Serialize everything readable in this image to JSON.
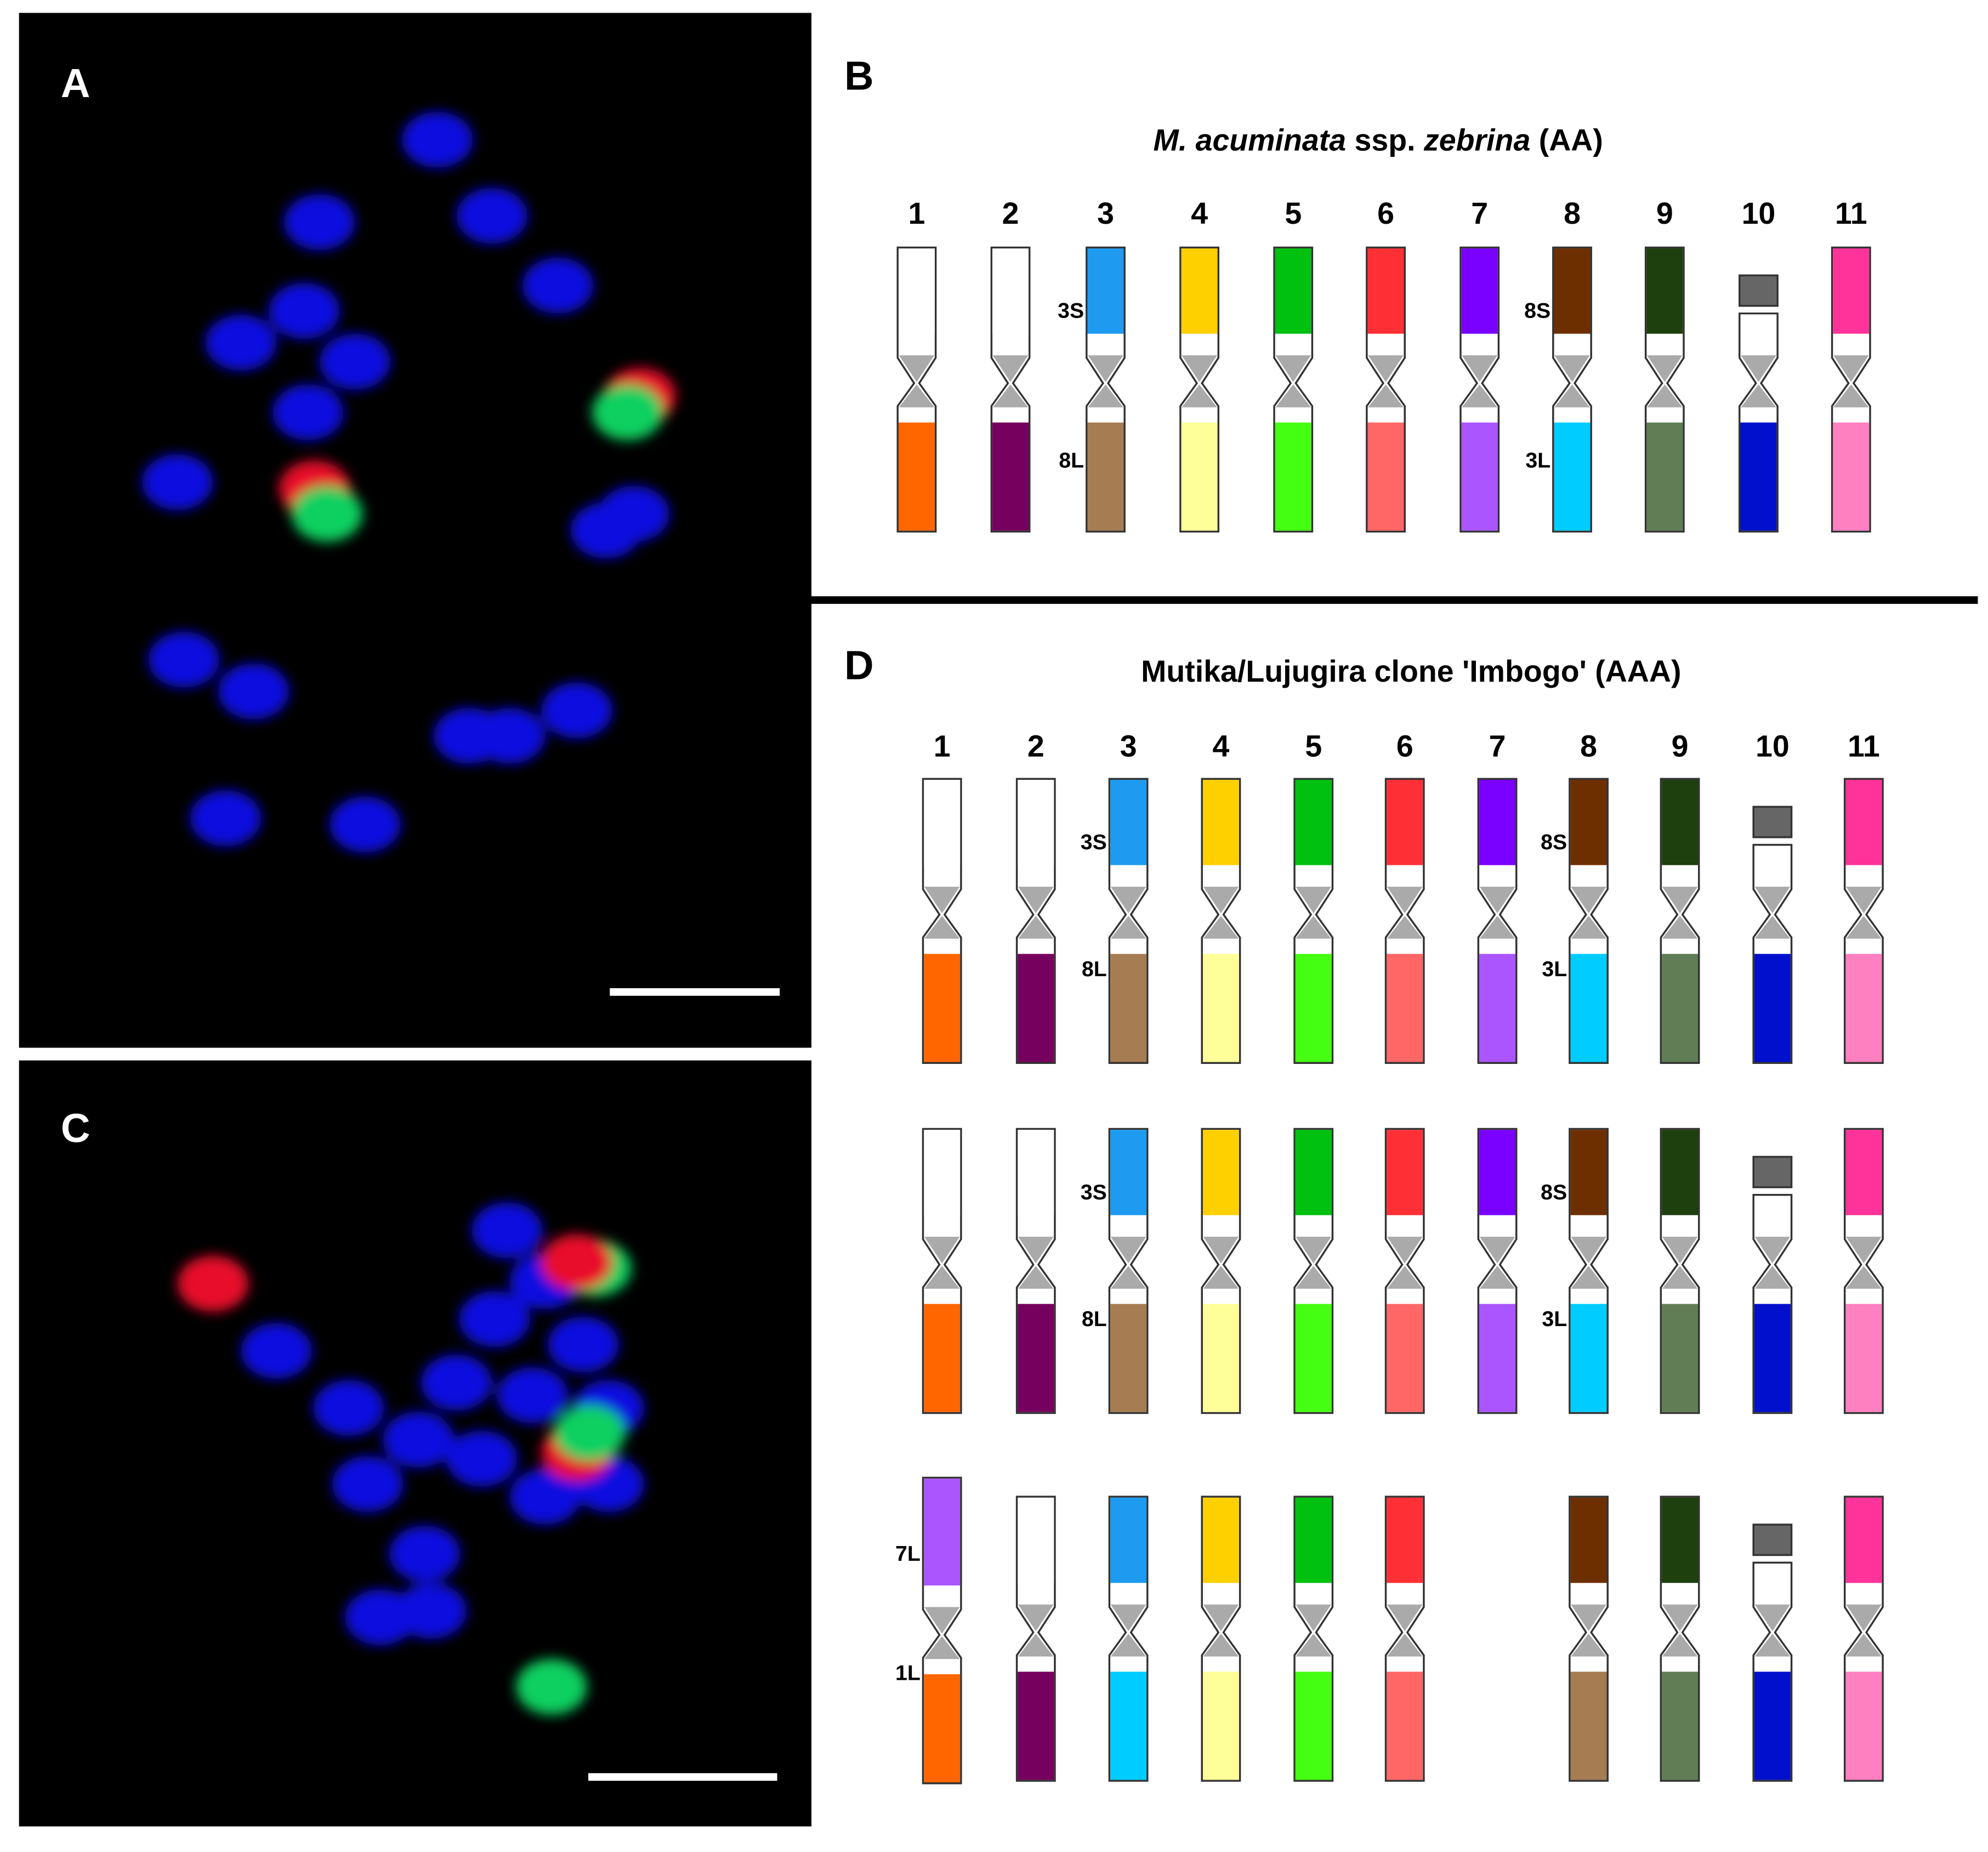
{
  "panels": {
    "a": {
      "label": "A"
    },
    "b": {
      "label": "B",
      "title": [
        {
          "text": "M. acuminata",
          "italic": true
        },
        {
          "text": " ssp. ",
          "italic": false
        },
        {
          "text": "zebrina",
          "italic": true
        },
        {
          "text": " (AA)",
          "italic": false
        }
      ],
      "numbers": [
        "1",
        "2",
        "3",
        "4",
        "5",
        "6",
        "7",
        "8",
        "9",
        "10",
        "11"
      ],
      "arm_labels": [
        "3S",
        "8L",
        "8S",
        "3L"
      ]
    },
    "c": {
      "label": "C"
    },
    "d": {
      "label": "D",
      "title": "Mutika/Lujugira clone 'Imbogo' (AAA)",
      "numbers": [
        "1",
        "2",
        "3",
        "4",
        "5",
        "6",
        "7",
        "8",
        "9",
        "10",
        "11"
      ],
      "rows": [
        {
          "arm_labels": [
            "3S",
            "8L",
            "8S",
            "3L"
          ]
        },
        {
          "arm_labels": [
            "3S",
            "8L",
            "8S",
            "3L"
          ]
        },
        {
          "arm_labels": [
            "7L",
            "1L"
          ]
        }
      ]
    }
  }
}
